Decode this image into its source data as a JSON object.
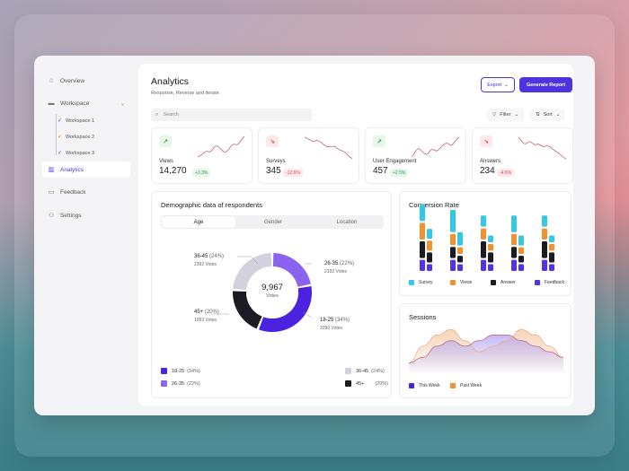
{
  "sidebar": {
    "items": [
      {
        "label": "Overview",
        "icon": "star-icon"
      },
      {
        "label": "Workspace",
        "icon": "folder-icon"
      },
      {
        "label": "Analytics",
        "icon": "chart-icon"
      },
      {
        "label": "Feedback",
        "icon": "message-icon"
      },
      {
        "label": "Settings",
        "icon": "users-icon"
      }
    ],
    "workspaces": [
      "Workspace 1",
      "Workspace 2",
      "Workspace 3"
    ],
    "workspace_check_colors": [
      "#4f32e0",
      "#e8803b",
      "#4f32e0"
    ]
  },
  "header": {
    "title": "Analytics",
    "subtitle": "Response, Reverse and iterate",
    "export_label": "Export",
    "generate_label": "Generate Report"
  },
  "toolbar": {
    "search_placeholder": "Search",
    "filter_label": "Filter",
    "sort_label": "Sort"
  },
  "kpis": [
    {
      "label": "Views",
      "value": "14,270",
      "delta": "+3.3%",
      "trend": "up"
    },
    {
      "label": "Surveys",
      "value": "345",
      "delta": "-12.6%",
      "trend": "down"
    },
    {
      "label": "User Engagement",
      "value": "457",
      "delta": "+2.5%",
      "trend": "up"
    },
    {
      "label": "Answers",
      "value": "234",
      "delta": "-4.6%",
      "trend": "down"
    }
  ],
  "demographic": {
    "title": "Demographic data of respondents",
    "tabs": [
      "Age",
      "Gender",
      "Location"
    ],
    "active_tab": "Age",
    "total": "9,967",
    "total_label": "Votes",
    "segments": [
      {
        "label": "36-45",
        "pct": "(24%)",
        "votes": "2392 Votes",
        "color": "#d4d1de"
      },
      {
        "label": "26-35",
        "pct": "(22%)",
        "votes": "2192 Votes",
        "color": "#8a63ee"
      },
      {
        "label": "18-25",
        "pct": "(34%)",
        "votes": "3390 Votes",
        "color": "#4a22e0"
      },
      {
        "label": "45+",
        "pct": "(20%)",
        "votes": "1993 Votes",
        "color": "#1d1b22"
      }
    ],
    "legend": [
      {
        "label": "18-25",
        "pct": "(34%)",
        "color": "#4a22e0"
      },
      {
        "label": "26-35",
        "pct": "(22%)",
        "color": "#8a63ee"
      },
      {
        "label": "36-45",
        "pct": "(24%)",
        "color": "#d4d1de"
      },
      {
        "label": "45+",
        "pct": "(20%)",
        "color": "#1d1b22"
      }
    ]
  },
  "conversion": {
    "title": "Conversion Rate",
    "legend": [
      {
        "label": "Survey",
        "color": "#33c8e6"
      },
      {
        "label": "Views",
        "color": "#f0922e"
      },
      {
        "label": "Answer",
        "color": "#1d1b22"
      },
      {
        "label": "Feedback",
        "color": "#5532e6"
      }
    ]
  },
  "sessions": {
    "title": "Sessions",
    "legend": [
      {
        "label": "This Week",
        "color": "#4a22e0"
      },
      {
        "label": "Past Week",
        "color": "#f0922e"
      }
    ]
  },
  "chart_data": [
    {
      "type": "pie",
      "categories": [
        "18-25",
        "26-35",
        "36-45",
        "45+"
      ],
      "values": [
        34,
        22,
        24,
        20
      ],
      "votes": [
        3390,
        2192,
        2392,
        1993
      ],
      "total": 9967
    },
    {
      "type": "bar",
      "title": "Conversion Rate",
      "groups": 5,
      "series": [
        {
          "name": "Survey",
          "values": [
            3,
            4,
            2,
            3,
            2
          ]
        },
        {
          "name": "Views",
          "values": [
            3,
            2,
            2,
            2,
            2
          ]
        },
        {
          "name": "Answer",
          "values": [
            3,
            2,
            3,
            2,
            3
          ]
        },
        {
          "name": "Feedback",
          "values": [
            2,
            2,
            2,
            2,
            2
          ]
        }
      ]
    },
    {
      "type": "area",
      "title": "Sessions",
      "series": [
        {
          "name": "This Week",
          "values": [
            2,
            3,
            5,
            6,
            5,
            6,
            7,
            7,
            6,
            5,
            4,
            3
          ]
        },
        {
          "name": "Past Week",
          "values": [
            2,
            5,
            7,
            8,
            6,
            4,
            5,
            6,
            8,
            7,
            5,
            3
          ]
        }
      ]
    }
  ]
}
